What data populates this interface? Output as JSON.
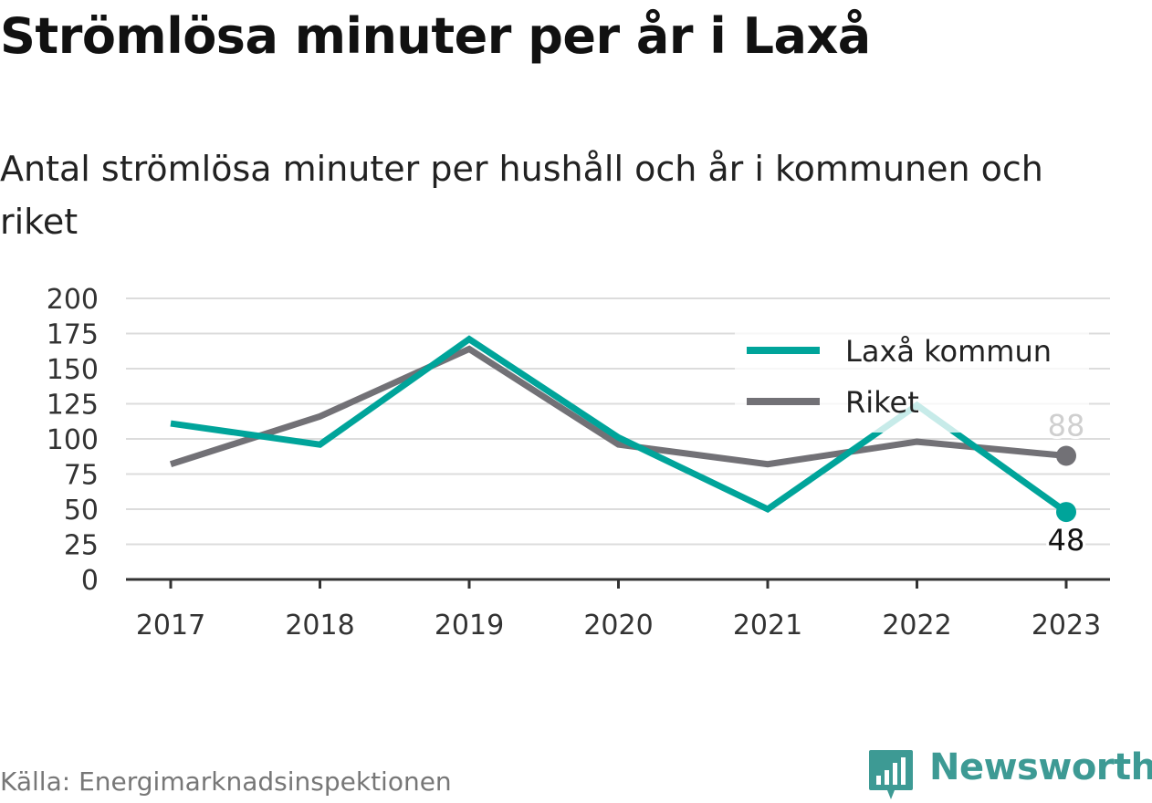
{
  "header": {
    "title": "Strömlösa minuter per år i Laxå",
    "subtitle": "Antal strömlösa minuter per hushåll och år i kommunen och riket"
  },
  "footer": {
    "source": "Källa: Energimarknadsinspektionen",
    "brand": "Newsworthy",
    "brand_icon": "bar-chart-badge-icon",
    "brand_color": "#3d9a94"
  },
  "chart_data": {
    "type": "line",
    "categories": [
      "2017",
      "2018",
      "2019",
      "2020",
      "2021",
      "2022",
      "2023"
    ],
    "series": [
      {
        "name": "Laxå kommun",
        "color": "#00a49a",
        "values": [
          111,
          96,
          171,
          101,
          50,
          124,
          48
        ]
      },
      {
        "name": "Riket",
        "color": "#727176",
        "values": [
          82,
          116,
          164,
          96,
          82,
          98,
          88
        ]
      }
    ],
    "end_labels": [
      "48",
      "88"
    ],
    "yticks": [
      "0",
      "25",
      "50",
      "75",
      "100",
      "125",
      "150",
      "175",
      "200"
    ],
    "ylim": [
      0,
      200
    ],
    "grid": true,
    "legend": "top-right"
  }
}
